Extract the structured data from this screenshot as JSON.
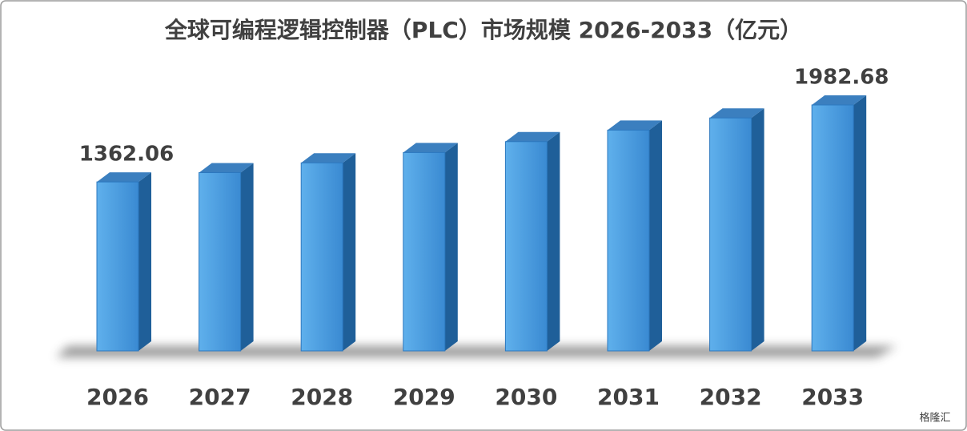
{
  "chart_data": {
    "type": "bar3d",
    "title": "全球可编程逻辑控制器（PLC）市场规模 2026-2033（亿元）",
    "categories": [
      "2026",
      "2027",
      "2028",
      "2029",
      "2030",
      "2031",
      "2032",
      "2033"
    ],
    "values": [
      1362.06,
      1437,
      1516,
      1599,
      1687,
      1780,
      1878,
      1982.68
    ],
    "value_labels": [
      "1362.06",
      null,
      null,
      null,
      null,
      null,
      null,
      "1982.68"
    ],
    "color": "#3a8fd6"
  },
  "watermark": "格隆汇"
}
